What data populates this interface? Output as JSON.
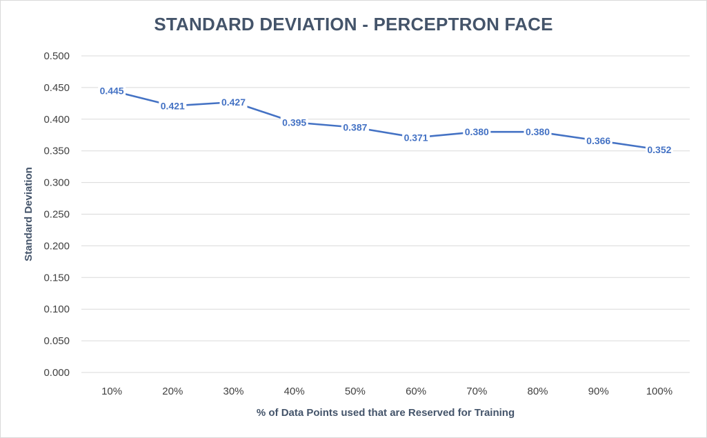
{
  "chart_data": {
    "type": "line",
    "title": "STANDARD DEVIATION - PERCEPTRON FACE",
    "xlabel": "% of Data Points used that are Reserved for Training",
    "ylabel": "Standard Deviation",
    "categories": [
      "10%",
      "20%",
      "30%",
      "40%",
      "50%",
      "60%",
      "70%",
      "80%",
      "90%",
      "100%"
    ],
    "series": [
      {
        "values": [
          0.445,
          0.421,
          0.427,
          0.395,
          0.387,
          0.371,
          0.38,
          0.38,
          0.366,
          0.352
        ],
        "labels": [
          "0.445",
          "0.421",
          "0.427",
          "0.395",
          "0.387",
          "0.371",
          "0.380",
          "0.380",
          "0.366",
          "0.352"
        ],
        "color": "#4472c4"
      }
    ],
    "ylim": [
      0,
      0.5
    ],
    "yticks": [
      "0.000",
      "0.050",
      "0.100",
      "0.150",
      "0.200",
      "0.250",
      "0.300",
      "0.350",
      "0.400",
      "0.450",
      "0.500"
    ],
    "grid": true,
    "legend": "none",
    "colors": {
      "line": "#4472c4",
      "grid": "#d9d9d9",
      "title": "#44546a",
      "tick": "#404040"
    }
  }
}
